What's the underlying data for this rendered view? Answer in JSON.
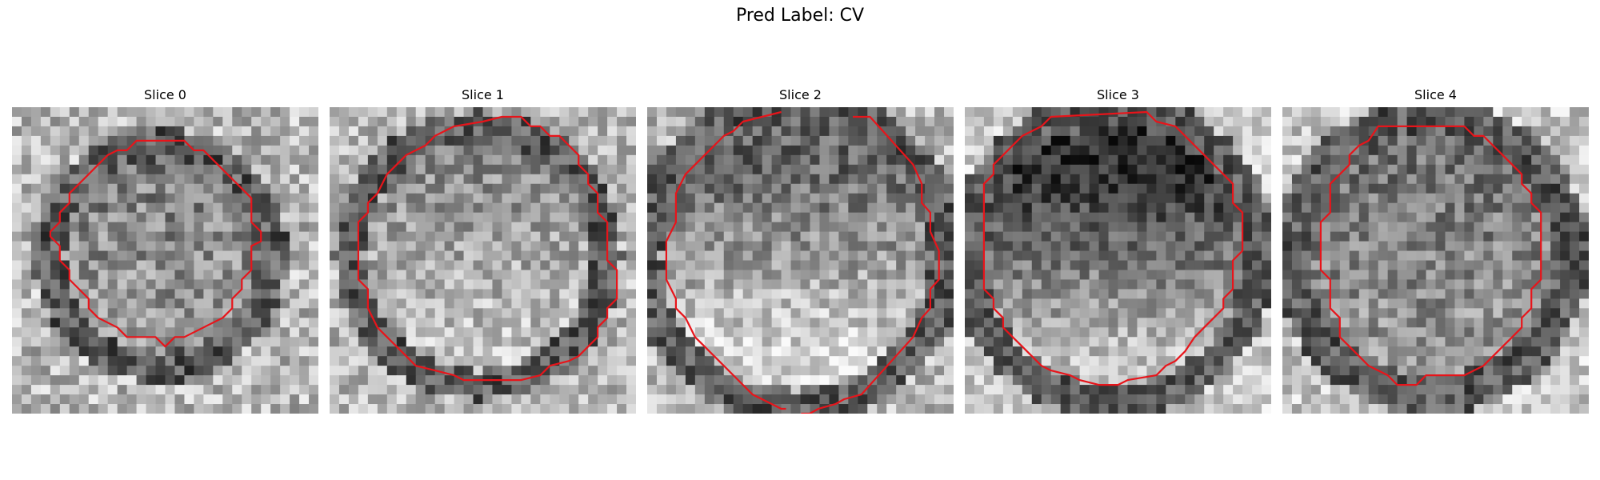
{
  "figure": {
    "title": "Pred Label: CV"
  },
  "slices": [
    {
      "label": "Slice 0"
    },
    {
      "label": "Slice 1"
    },
    {
      "label": "Slice 2"
    },
    {
      "label": "Slice 3"
    },
    {
      "label": "Slice 4"
    }
  ],
  "contour_color": "#e8141a",
  "colormap": "grayscale"
}
